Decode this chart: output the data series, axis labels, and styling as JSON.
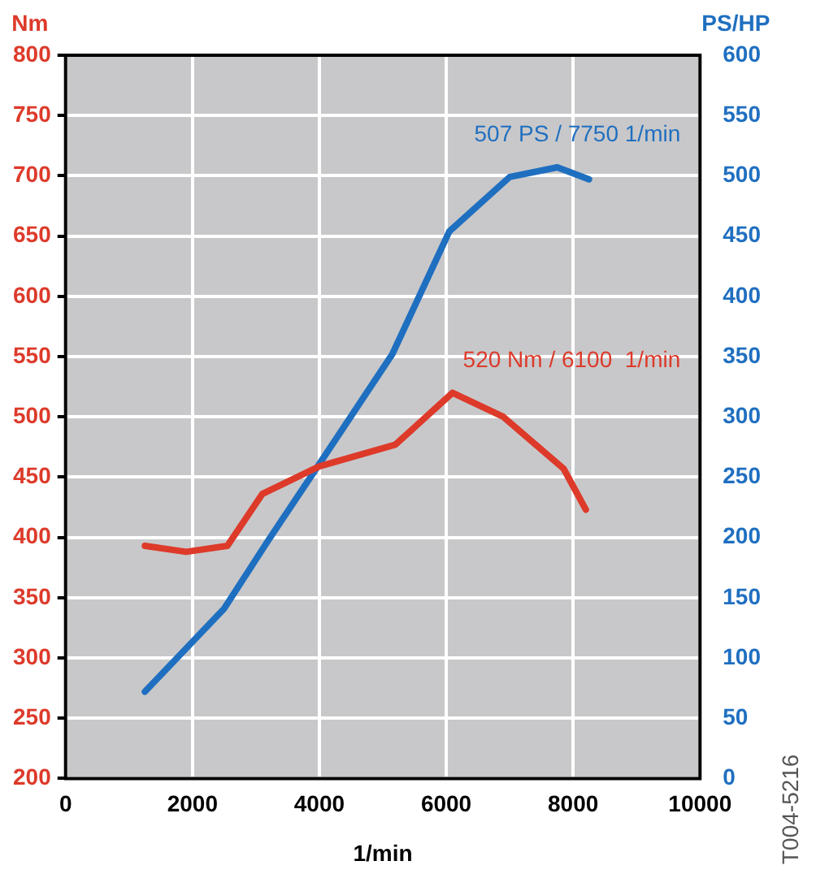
{
  "chart_data": {
    "type": "line",
    "xlabel": "1/min",
    "ylabel": "Nm",
    "y2label": "PS/HP",
    "xlim": [
      0,
      10000
    ],
    "xticks": [
      0,
      2000,
      4000,
      6000,
      8000,
      10000
    ],
    "ylim": [
      200,
      800
    ],
    "yticks": [
      200,
      250,
      300,
      350,
      400,
      450,
      500,
      550,
      600,
      650,
      700,
      750,
      800
    ],
    "y2lim": [
      0,
      600
    ],
    "y2ticks": [
      0,
      50,
      100,
      150,
      200,
      250,
      300,
      350,
      400,
      450,
      500,
      550,
      600
    ],
    "grid": true,
    "legend": false,
    "marker": "none",
    "line_style": "solid",
    "series": [
      {
        "color": "#dd3a2a",
        "x": [
          1250,
          1900,
          2550,
          3100,
          4000,
          5200,
          6100,
          6900,
          7850,
          8200
        ],
        "values": [
          393,
          388,
          393,
          436,
          459,
          477,
          520,
          500,
          457,
          423
        ]
      },
      {
        "color": "#1f6fc0",
        "axis": "y2",
        "x": [
          1250,
          2500,
          3200,
          3950,
          5150,
          6050,
          7000,
          7750,
          8250
        ],
        "values": [
          72,
          141,
          198,
          257,
          352,
          454,
          499,
          507,
          497
        ]
      }
    ],
    "annotations": [
      "520 Nm / 6100  1/min",
      "507 PS / 7750 1/min",
      "T004-5216"
    ]
  }
}
